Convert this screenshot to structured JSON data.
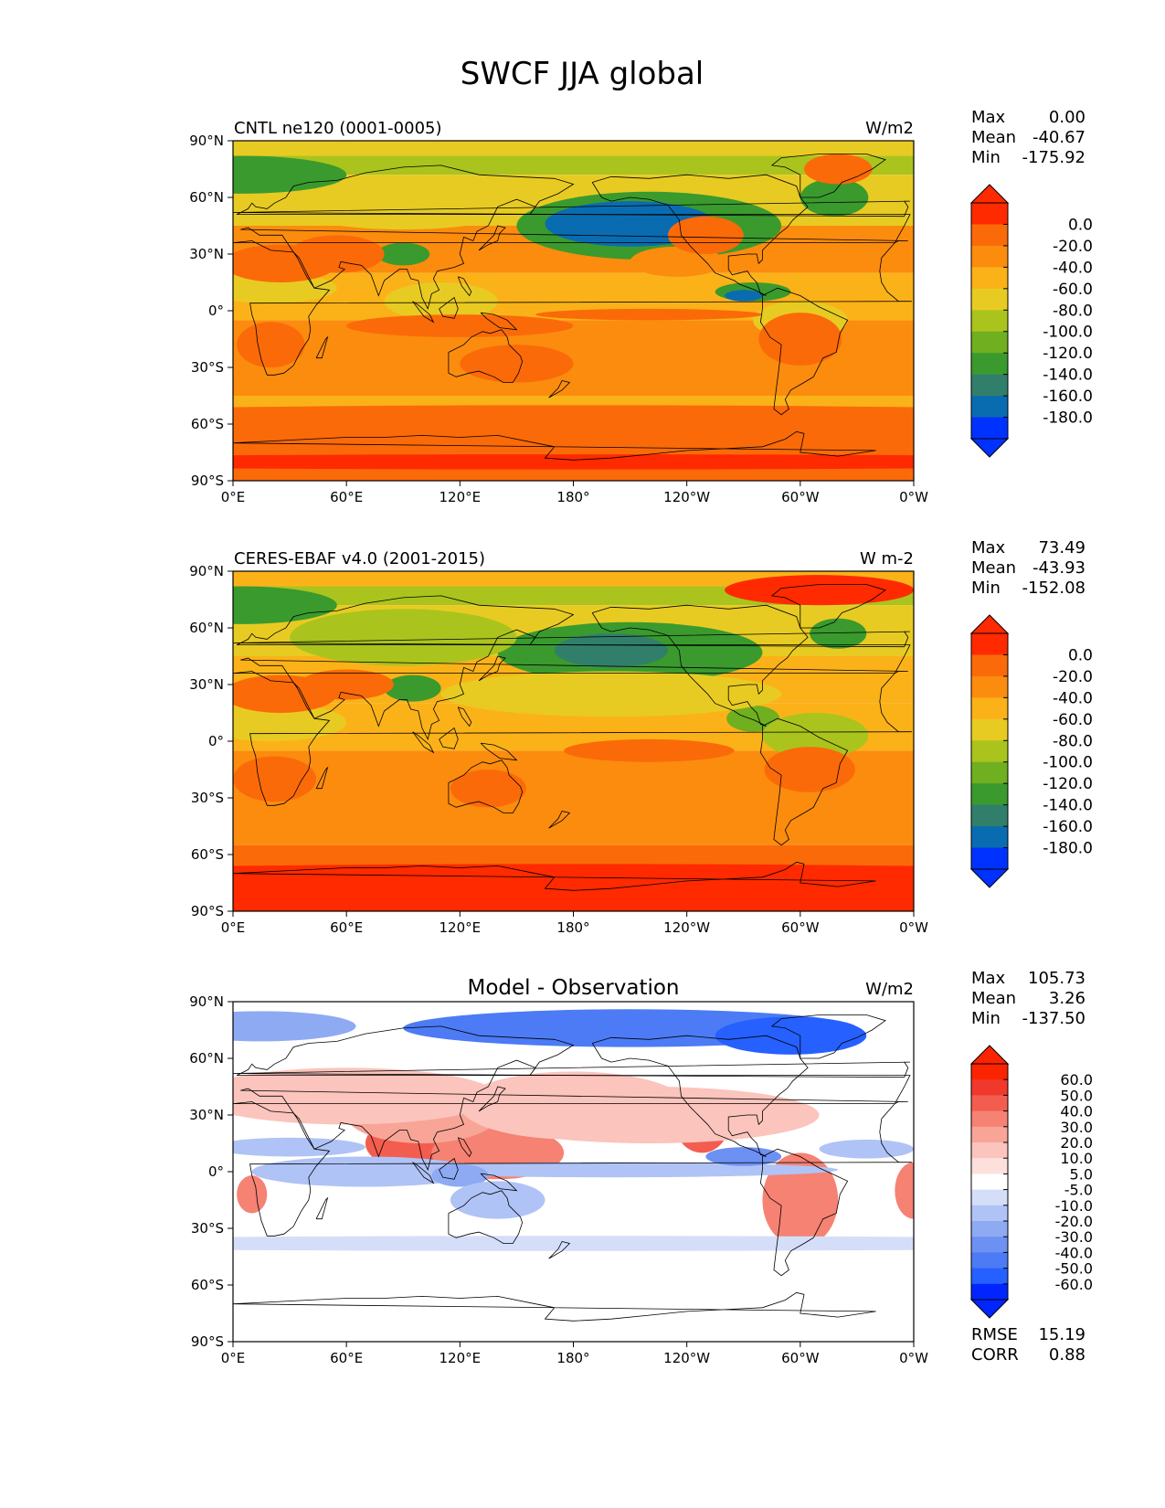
{
  "figure": {
    "title": "SWCF JJA global"
  },
  "colors": {
    "seq": [
      "#0032ff",
      "#0a6cb0",
      "#317f6b",
      "#3a9a2e",
      "#6faf20",
      "#aac41d",
      "#e8cb22",
      "#fbb218",
      "#fb8c0e",
      "#fb6a08",
      "#ff2a00"
    ],
    "div": [
      "#0025ff",
      "#2660ff",
      "#4c7bf5",
      "#6d91f2",
      "#8eaaf3",
      "#b0c3f6",
      "#d5def9",
      "#ffffff",
      "#fde0dc",
      "#fbc4bc",
      "#f8a597",
      "#f58273",
      "#f35d4f",
      "#f0392c",
      "#fb2400"
    ]
  },
  "axes": {
    "lon_ticks": [
      "0°E",
      "60°E",
      "120°E",
      "180°",
      "120°W",
      "60°W",
      "0°W"
    ],
    "lat_ticks": [
      "90°N",
      "60°N",
      "30°N",
      "0°",
      "30°S",
      "60°S",
      "90°S"
    ]
  },
  "panels": [
    {
      "id": "model",
      "subtitle": "CNTL ne120 (0001-0005)",
      "center_title": "",
      "units": "W/m2",
      "stats": [
        {
          "label": "Max",
          "value": "0.00"
        },
        {
          "label": "Mean",
          "value": "-40.67"
        },
        {
          "label": "Min",
          "value": "-175.92"
        }
      ],
      "colorbar": {
        "scheme": "seq",
        "labels": [
          "0.0",
          "-20.0",
          "-40.0",
          "-60.0",
          "-80.0",
          "-100.0",
          "-120.0",
          "-140.0",
          "-160.0",
          "-180.0"
        ]
      },
      "extra": []
    },
    {
      "id": "obs",
      "subtitle": "CERES-EBAF v4.0 (2001-2015)",
      "center_title": "",
      "units": "W m-2",
      "stats": [
        {
          "label": "Max",
          "value": "73.49"
        },
        {
          "label": "Mean",
          "value": "-43.93"
        },
        {
          "label": "Min",
          "value": "-152.08"
        }
      ],
      "colorbar": {
        "scheme": "seq",
        "labels": [
          "0.0",
          "-20.0",
          "-40.0",
          "-60.0",
          "-80.0",
          "-100.0",
          "-120.0",
          "-140.0",
          "-160.0",
          "-180.0"
        ]
      },
      "extra": []
    },
    {
      "id": "diff",
      "subtitle": "",
      "center_title": "Model - Observation",
      "units": "W/m2",
      "stats": [
        {
          "label": "Max",
          "value": "105.73"
        },
        {
          "label": "Mean",
          "value": "3.26"
        },
        {
          "label": "Min",
          "value": "-137.50"
        }
      ],
      "colorbar": {
        "scheme": "div",
        "labels": [
          "60.0",
          "50.0",
          "40.0",
          "30.0",
          "20.0",
          "10.0",
          "5.0",
          "-5.0",
          "-10.0",
          "-20.0",
          "-30.0",
          "-40.0",
          "-50.0",
          "-60.0"
        ]
      },
      "extra": [
        {
          "label": "RMSE",
          "value": "15.19"
        },
        {
          "label": "CORR",
          "value": "0.88"
        }
      ]
    }
  ]
}
